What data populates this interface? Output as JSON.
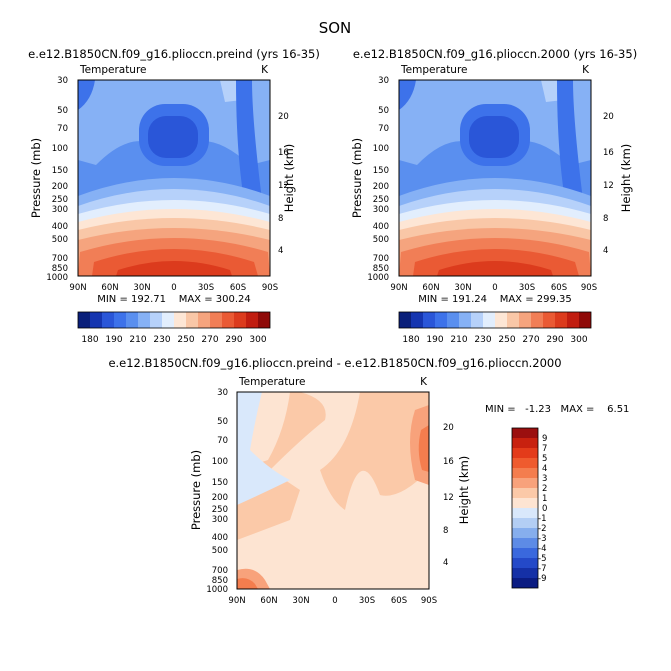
{
  "page_title": "SON",
  "chart_data": [
    {
      "type": "heatmap",
      "title": "e.e12.B1850CN.f09_g16.plioccn.preind (yrs 16-35)",
      "variable": "Temperature",
      "units": "K",
      "xlabel": "",
      "ylabel": "Pressure (mb)",
      "y2label": "Height (km)",
      "x_ticks": [
        "90N",
        "60N",
        "30N",
        "0",
        "30S",
        "60S",
        "90S"
      ],
      "y_ticks": [
        "30",
        "50",
        "70",
        "100",
        "150",
        "200",
        "250",
        "300",
        "400",
        "500",
        "700",
        "850",
        "1000"
      ],
      "y2_ticks": [
        "4",
        "8",
        "12",
        "16",
        "20"
      ],
      "stats": "MIN = 192.71    MAX = 300.24",
      "levels": [
        "180",
        "190",
        "210",
        "230",
        "250",
        "270",
        "290",
        "300"
      ],
      "palette": [
        "#0a1f7a",
        "#1535b0",
        "#2a56d8",
        "#3d72ea",
        "#5a8fef",
        "#86b1f5",
        "#b6d1fa",
        "#e2eefd",
        "#fde6d5",
        "#f9c7a7",
        "#f5a47e",
        "#f17e56",
        "#ea5a34",
        "#dc3b1d",
        "#c11d10",
        "#8f0a08"
      ]
    },
    {
      "type": "heatmap",
      "title": "e.e12.B1850CN.f09_g16.plioccn.2000 (yrs 16-35)",
      "variable": "Temperature",
      "units": "K",
      "xlabel": "",
      "ylabel": "Pressure (mb)",
      "y2label": "Height (km)",
      "x_ticks": [
        "90N",
        "60N",
        "30N",
        "0",
        "30S",
        "60S",
        "90S"
      ],
      "y_ticks": [
        "30",
        "50",
        "70",
        "100",
        "150",
        "200",
        "250",
        "300",
        "400",
        "500",
        "700",
        "850",
        "1000"
      ],
      "y2_ticks": [
        "4",
        "8",
        "12",
        "16",
        "20"
      ],
      "stats": "MIN = 191.24    MAX = 299.35",
      "levels": [
        "180",
        "190",
        "210",
        "230",
        "250",
        "270",
        "290",
        "300"
      ]
    },
    {
      "type": "heatmap",
      "title": "e.e12.B1850CN.f09_g16.plioccn.preind - e.e12.B1850CN.f09_g16.plioccn.2000",
      "variable": "Temperature",
      "units": "K",
      "xlabel": "",
      "ylabel": "Pressure (mb)",
      "y2label": "Height (km)",
      "x_ticks": [
        "90N",
        "60N",
        "30N",
        "0",
        "30S",
        "60S",
        "90S"
      ],
      "y_ticks": [
        "30",
        "50",
        "70",
        "100",
        "150",
        "200",
        "250",
        "300",
        "400",
        "500",
        "700",
        "850",
        "1000"
      ],
      "y2_ticks": [
        "4",
        "8",
        "12",
        "16",
        "20"
      ],
      "stats": "MIN =   -1.23   MAX =    6.51",
      "levels": [
        "9",
        "7",
        "5",
        "4",
        "3",
        "2",
        "1",
        "0",
        "-1",
        "-2",
        "-3",
        "-4",
        "-5",
        "-7",
        "-9"
      ],
      "palette": [
        "#9b0f0f",
        "#c8210f",
        "#e33b1a",
        "#ef5b2e",
        "#f47d4e",
        "#f8a27b",
        "#fbc9a8",
        "#fde4d2",
        "#d9e8fb",
        "#b3cef4",
        "#86aeed",
        "#5d8be6",
        "#3a68dd",
        "#2449c8",
        "#1530a6",
        "#0b1c82"
      ]
    }
  ]
}
